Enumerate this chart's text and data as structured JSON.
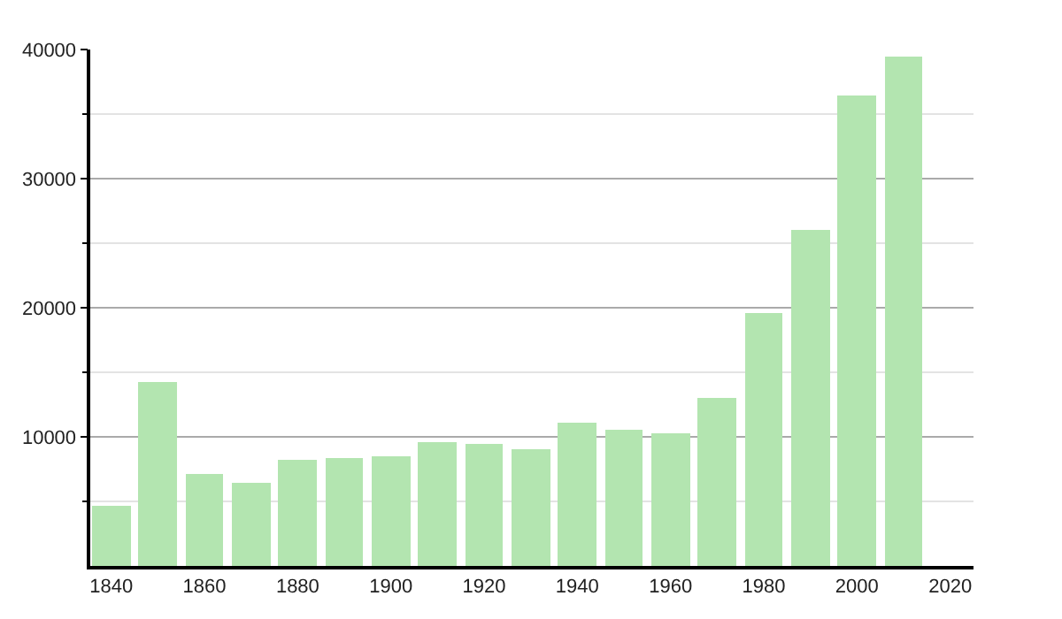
{
  "chart_data": {
    "type": "bar",
    "x": [
      1840,
      1850,
      1860,
      1870,
      1880,
      1890,
      1900,
      1910,
      1920,
      1930,
      1940,
      1950,
      1960,
      1970,
      1980,
      1990,
      2000,
      2010
    ],
    "values": [
      4700,
      14300,
      7100,
      6500,
      8200,
      8400,
      8500,
      9600,
      9400,
      9100,
      11100,
      10600,
      10300,
      13000,
      19600,
      26000,
      36400,
      39500
    ],
    "color": "#b3e5b0",
    "xlim": [
      1835.5,
      2025
    ],
    "xticks": [
      1840,
      1860,
      1880,
      1900,
      1920,
      1940,
      1960,
      1980,
      2000,
      2020
    ],
    "ylim": [
      0,
      40000
    ],
    "yticks": [
      {
        "value": 5000,
        "label": null
      },
      10000,
      {
        "value": 15000,
        "label": null
      },
      20000,
      {
        "value": 25000,
        "label": null
      },
      30000,
      {
        "value": 35000,
        "label": null
      },
      40000
    ],
    "grid": "y"
  }
}
